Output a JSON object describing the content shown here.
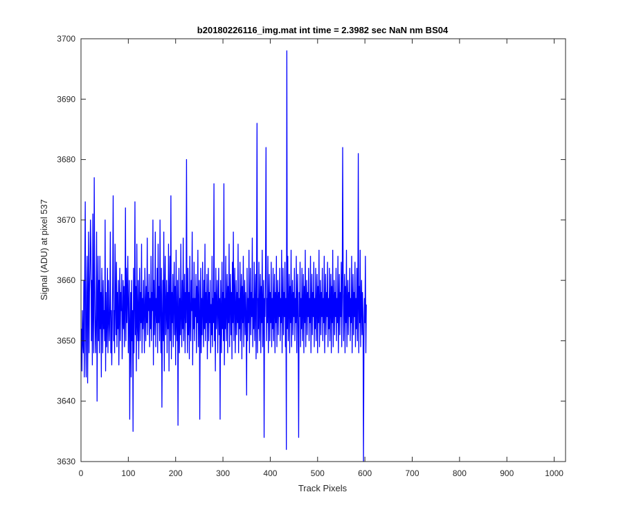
{
  "chart_data": {
    "type": "line",
    "title": "b20180226116_img.mat int time = 2.3982 sec  NaN nm BS04",
    "xlabel": "Track Pixels",
    "ylabel": "Signal (ADU) at pixel 537",
    "xlim": [
      0,
      1024
    ],
    "ylim": [
      3630,
      3700
    ],
    "xticks": [
      0,
      100,
      200,
      300,
      400,
      500,
      600,
      700,
      800,
      900,
      1000
    ],
    "yticks": [
      3630,
      3640,
      3650,
      3660,
      3670,
      3680,
      3690,
      3700
    ],
    "grid": false,
    "line_color": "#0000ff",
    "series": [
      {
        "x_start": 1,
        "x_step": 1,
        "values": [
          3652,
          3645,
          3655,
          3650,
          3648,
          3660,
          3644,
          3662,
          3673,
          3650,
          3644,
          3658,
          3664,
          3643,
          3655,
          3668,
          3648,
          3658,
          3662,
          3670,
          3665,
          3650,
          3660,
          3646,
          3671,
          3655,
          3648,
          3677,
          3660,
          3652,
          3648,
          3655,
          3668,
          3640,
          3656,
          3664,
          3650,
          3660,
          3648,
          3664,
          3652,
          3658,
          3644,
          3662,
          3656,
          3648,
          3660,
          3652,
          3655,
          3650,
          3670,
          3645,
          3658,
          3649,
          3653,
          3662,
          3648,
          3660,
          3654,
          3650,
          3656,
          3668,
          3648,
          3655,
          3646,
          3652,
          3660,
          3674,
          3650,
          3655,
          3648,
          3666,
          3657,
          3651,
          3663,
          3649,
          3658,
          3652,
          3660,
          3646,
          3654,
          3662,
          3650,
          3658,
          3655,
          3661,
          3647,
          3653,
          3660,
          3652,
          3659,
          3649,
          3656,
          3672,
          3650,
          3662,
          3653,
          3658,
          3664,
          3648,
          3655,
          3660,
          3637,
          3652,
          3658,
          3644,
          3660,
          3650,
          3655,
          3635,
          3662,
          3648,
          3656,
          3673,
          3651,
          3659,
          3645,
          3666,
          3653,
          3650,
          3660,
          3647,
          3655,
          3662,
          3650,
          3658,
          3653,
          3666,
          3648,
          3657,
          3652,
          3660,
          3654,
          3648,
          3662,
          3656,
          3650,
          3659,
          3653,
          3667,
          3651,
          3658,
          3655,
          3661,
          3649,
          3657,
          3652,
          3664,
          3650,
          3658,
          3655,
          3670,
          3646,
          3660,
          3651,
          3655,
          3668,
          3649,
          3657,
          3653,
          3662,
          3648,
          3666,
          3653,
          3659,
          3650,
          3670,
          3655,
          3648,
          3662,
          3639,
          3653,
          3660,
          3650,
          3668,
          3645,
          3657,
          3664,
          3651,
          3655,
          3660,
          3648,
          3658,
          3652,
          3666,
          3645,
          3657,
          3664,
          3650,
          3674,
          3647,
          3658,
          3653,
          3661,
          3649,
          3656,
          3663,
          3651,
          3659,
          3646,
          3665,
          3653,
          3650,
          3660,
          3636,
          3655,
          3662,
          3648,
          3657,
          3651,
          3666,
          3654,
          3649,
          3660,
          3652,
          3667,
          3650,
          3656,
          3661,
          3648,
          3658,
          3653,
          3680,
          3655,
          3648,
          3662,
          3651,
          3658,
          3647,
          3664,
          3653,
          3650,
          3660,
          3655,
          3668,
          3646,
          3657,
          3652,
          3663,
          3650,
          3657,
          3654,
          3661,
          3648,
          3659,
          3653,
          3665,
          3649,
          3656,
          3660,
          3637,
          3654,
          3662,
          3648,
          3657,
          3651,
          3663,
          3655,
          3649,
          3660,
          3652,
          3666,
          3650,
          3658,
          3653,
          3661,
          3647,
          3655,
          3662,
          3650,
          3658,
          3653,
          3660,
          3648,
          3656,
          3651,
          3664,
          3649,
          3657,
          3653,
          3676,
          3650,
          3658,
          3645,
          3662,
          3652,
          3656,
          3660,
          3648,
          3655,
          3662,
          3651,
          3657,
          3637,
          3660,
          3654,
          3648,
          3663,
          3652,
          3658,
          3650,
          3676,
          3646,
          3657,
          3652,
          3664,
          3650,
          3656,
          3661,
          3648,
          3659,
          3653,
          3666,
          3649,
          3656,
          3661,
          3651,
          3658,
          3647,
          3663,
          3653,
          3668,
          3650,
          3657,
          3662,
          3648,
          3655,
          3660,
          3651,
          3658,
          3653,
          3666,
          3648,
          3657,
          3652,
          3663,
          3650,
          3656,
          3661,
          3647,
          3659,
          3653,
          3664,
          3649,
          3656,
          3660,
          3651,
          3658,
          3654,
          3641,
          3662,
          3650,
          3657,
          3653,
          3665,
          3648,
          3656,
          3662,
          3651,
          3658,
          3654,
          3667,
          3649,
          3657,
          3652,
          3663,
          3650,
          3656,
          3661,
          3647,
          3659,
          3686,
          3648,
          3657,
          3652,
          3663,
          3650,
          3656,
          3661,
          3648,
          3659,
          3653,
          3665,
          3649,
          3656,
          3660,
          3634,
          3657,
          3654,
          3662,
          3682,
          3650,
          3657,
          3653,
          3664,
          3648,
          3656,
          3661,
          3650,
          3658,
          3653,
          3663,
          3649,
          3657,
          3652,
          3662,
          3650,
          3656,
          3661,
          3648,
          3658,
          3653,
          3664,
          3649,
          3656,
          3660,
          3651,
          3658,
          3654,
          3662,
          3650,
          3657,
          3653,
          3665,
          3648,
          3656,
          3662,
          3651,
          3658,
          3654,
          3663,
          3649,
          3657,
          3632,
          3698,
          3652,
          3664,
          3650,
          3656,
          3661,
          3648,
          3659,
          3653,
          3665,
          3649,
          3656,
          3660,
          3651,
          3658,
          3654,
          3662,
          3650,
          3657,
          3653,
          3664,
          3648,
          3656,
          3661,
          3651,
          3634,
          3658,
          3654,
          3663,
          3649,
          3657,
          3652,
          3662,
          3650,
          3656,
          3661,
          3648,
          3659,
          3653,
          3665,
          3649,
          3656,
          3660,
          3651,
          3658,
          3654,
          3662,
          3650,
          3657,
          3653,
          3664,
          3648,
          3656,
          3661,
          3651,
          3658,
          3654,
          3663,
          3649,
          3657,
          3652,
          3662,
          3650,
          3656,
          3661,
          3648,
          3659,
          3653,
          3665,
          3649,
          3656,
          3660,
          3651,
          3658,
          3654,
          3662,
          3650,
          3657,
          3653,
          3664,
          3648,
          3656,
          3661,
          3651,
          3658,
          3654,
          3663,
          3649,
          3657,
          3652,
          3662,
          3650,
          3656,
          3661,
          3648,
          3659,
          3653,
          3665,
          3649,
          3656,
          3660,
          3651,
          3658,
          3654,
          3662,
          3650,
          3657,
          3653,
          3664,
          3648,
          3656,
          3661,
          3651,
          3658,
          3654,
          3663,
          3649,
          3657,
          3682,
          3662,
          3650,
          3656,
          3661,
          3648,
          3659,
          3653,
          3665,
          3649,
          3656,
          3660,
          3651,
          3658,
          3654,
          3662,
          3650,
          3657,
          3653,
          3664,
          3648,
          3656,
          3661,
          3651,
          3658,
          3654,
          3663,
          3649,
          3657,
          3652,
          3662,
          3650,
          3656,
          3681,
          3648,
          3659,
          3653,
          3665,
          3649,
          3656,
          3660,
          3651,
          3658,
          3654,
          3630,
          3650,
          3657,
          3653,
          3664,
          3648,
          3656
        ]
      }
    ]
  }
}
